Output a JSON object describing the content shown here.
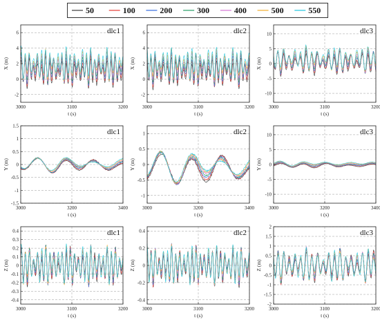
{
  "legend": {
    "entries": [
      {
        "name": "50",
        "color": "#3a3a3a"
      },
      {
        "name": "100",
        "color": "#e8403b"
      },
      {
        "name": "200",
        "color": "#3b6fe0"
      },
      {
        "name": "300",
        "color": "#2fa16a"
      },
      {
        "name": "400",
        "color": "#d87ad8"
      },
      {
        "name": "500",
        "color": "#f2b134"
      },
      {
        "name": "550",
        "color": "#27c7e0"
      }
    ]
  },
  "chart_data": [
    {
      "type": "line",
      "title": "dlc1",
      "xlabel": "t (s)",
      "ylabel": "X (m)",
      "xlim": [
        3000,
        3200
      ],
      "ylim": [
        -3,
        7
      ],
      "xticks": [
        3000,
        3100,
        3200
      ],
      "yticks": [
        -2,
        0,
        2,
        4,
        6
      ],
      "grid": true,
      "wave": {
        "base": 1.5,
        "amp": 1.8,
        "period": 8,
        "spread": 1.2,
        "seed": 1
      },
      "series": [
        "50",
        "100",
        "200",
        "300",
        "400",
        "500",
        "550"
      ]
    },
    {
      "type": "line",
      "title": "dlc2",
      "xlabel": "t (s)",
      "ylabel": "X (m)",
      "xlim": [
        3000,
        3200
      ],
      "ylim": [
        -3,
        7
      ],
      "xticks": [
        3000,
        3100,
        3200
      ],
      "yticks": [
        -2,
        0,
        2,
        4,
        6
      ],
      "grid": true,
      "wave": {
        "base": 1.5,
        "amp": 1.8,
        "period": 8,
        "spread": 1.2,
        "seed": 2
      },
      "series": [
        "50",
        "100",
        "200",
        "300",
        "400",
        "500",
        "550"
      ]
    },
    {
      "type": "line",
      "title": "dlc3",
      "xlabel": "t (s)",
      "ylabel": "X (m)",
      "xlim": [
        3000,
        3200
      ],
      "ylim": [
        -13,
        13
      ],
      "xticks": [
        3000,
        3100,
        3200
      ],
      "yticks": [
        -10,
        -5,
        0,
        5,
        10
      ],
      "grid": true,
      "wave": {
        "base": 1.0,
        "amp": 3.5,
        "period": 11,
        "spread": 1.8,
        "seed": 3
      },
      "series": [
        "50",
        "100",
        "200",
        "300",
        "400",
        "500",
        "550"
      ]
    },
    {
      "type": "line",
      "title": "dlc1",
      "xlabel": "t (s)",
      "ylabel": "Y (m)",
      "xlim": [
        3000,
        3400
      ],
      "ylim": [
        -1.5,
        1.5
      ],
      "xticks": [
        3000,
        3200,
        3400
      ],
      "yticks": [
        -1.5,
        -1.0,
        -0.5,
        0.0,
        0.5,
        1.0,
        1.5
      ],
      "grid": true,
      "wave": {
        "base": 0.0,
        "amp": 0.25,
        "period": 110,
        "spread": 0.08,
        "seed": 4
      },
      "series": [
        "50",
        "100",
        "200",
        "300",
        "400",
        "500",
        "550"
      ]
    },
    {
      "type": "line",
      "title": "dlc2",
      "xlabel": "t (s)",
      "ylabel": "Y (m)",
      "xlim": [
        3000,
        3400
      ],
      "ylim": [
        -1.25,
        1.25
      ],
      "xticks": [
        3000,
        3200,
        3400
      ],
      "yticks": [
        -1.0,
        -0.5,
        0.0,
        0.5,
        1.0
      ],
      "grid": true,
      "wave": {
        "base": -0.1,
        "amp": 0.45,
        "period": 120,
        "spread": 0.12,
        "seed": 5
      },
      "series": [
        "50",
        "100",
        "200",
        "300",
        "400",
        "500",
        "550"
      ]
    },
    {
      "type": "line",
      "title": "dlc3",
      "xlabel": "t (s)",
      "ylabel": "Y (m)",
      "xlim": [
        3000,
        3400
      ],
      "ylim": [
        -13,
        13
      ],
      "xticks": [
        3000,
        3200,
        3400
      ],
      "yticks": [
        -10,
        -5,
        0,
        5,
        10
      ],
      "grid": true,
      "wave": {
        "base": 0.0,
        "amp": 0.7,
        "period": 90,
        "spread": 0.8,
        "seed": 6
      },
      "series": [
        "50",
        "100",
        "200",
        "300",
        "400",
        "500",
        "550"
      ]
    },
    {
      "type": "line",
      "title": "dlc1",
      "xlabel": "t (s)",
      "ylabel": "Z (m)",
      "xlim": [
        3000,
        3200
      ],
      "ylim": [
        -0.45,
        0.45
      ],
      "xticks": [
        3000,
        3100,
        3200
      ],
      "yticks": [
        -0.4,
        -0.3,
        -0.2,
        -0.1,
        0.0,
        0.1,
        0.2,
        0.3,
        0.4
      ],
      "grid": true,
      "wave": {
        "base": 0.0,
        "amp": 0.2,
        "period": 8,
        "spread": 0.02,
        "seed": 7
      },
      "series": [
        "50",
        "100",
        "200",
        "300",
        "400",
        "500",
        "550"
      ]
    },
    {
      "type": "line",
      "title": "dlc2",
      "xlabel": "t (s)",
      "ylabel": "Z (m)",
      "xlim": [
        3000,
        3200
      ],
      "ylim": [
        -0.45,
        0.45
      ],
      "xticks": [
        3000,
        3100,
        3200
      ],
      "yticks": [
        -0.4,
        -0.2,
        0.0,
        0.2,
        0.4
      ],
      "grid": true,
      "wave": {
        "base": 0.0,
        "amp": 0.2,
        "period": 8,
        "spread": 0.02,
        "seed": 8
      },
      "series": [
        "50",
        "100",
        "200",
        "300",
        "400",
        "500",
        "550"
      ]
    },
    {
      "type": "line",
      "title": "dlc3",
      "xlabel": "t (s)",
      "ylabel": "Z (m)",
      "xlim": [
        3000,
        3200
      ],
      "ylim": [
        -2.0,
        2.0
      ],
      "xticks": [
        3000,
        3100,
        3200
      ],
      "yticks": [
        -2.0,
        -1.5,
        -1.0,
        -0.5,
        0.0,
        0.5,
        1.0,
        1.5,
        2.0
      ],
      "grid": true,
      "wave": {
        "base": 0.0,
        "amp": 0.75,
        "period": 11,
        "spread": 0.06,
        "seed": 9
      },
      "series": [
        "50",
        "100",
        "200",
        "300",
        "400",
        "500",
        "550"
      ]
    }
  ]
}
